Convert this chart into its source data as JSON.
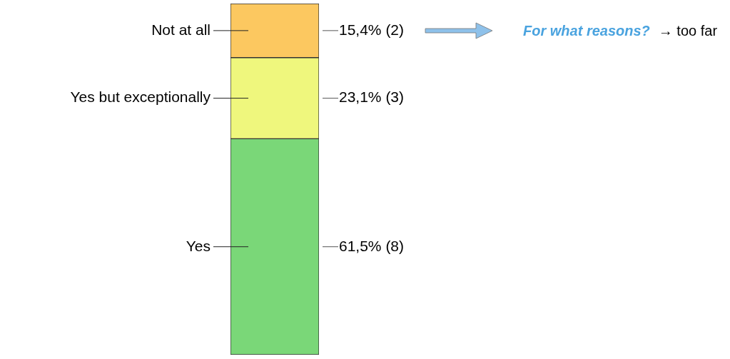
{
  "chart_data": {
    "type": "bar",
    "stacked": true,
    "categories": [
      null
    ],
    "series": [
      {
        "name": "Yes",
        "color": "#7ad778",
        "values": [
          61.5
        ],
        "value_labels": [
          "61,5% (8)"
        ]
      },
      {
        "name": "Yes but exceptionally",
        "color": "#eff77d",
        "values": [
          23.1
        ],
        "value_labels": [
          "23,1% (3)"
        ]
      },
      {
        "name": "Not at all",
        "color": "#fcc860",
        "values": [
          15.4
        ],
        "value_labels": [
          "15,4% (2)"
        ]
      }
    ],
    "legend": false,
    "annotations": [
      "For what reasons?",
      "→ too far"
    ]
  }
}
